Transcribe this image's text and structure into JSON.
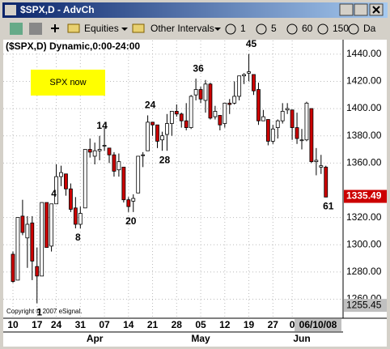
{
  "window": {
    "title": "$SPX,D - AdvCh"
  },
  "toolbar": {
    "groups": [
      "Equities",
      "Other Intervals"
    ],
    "intervals": [
      "1",
      "5",
      "60",
      "150",
      "Da"
    ]
  },
  "chart_data": {
    "type": "candlestick",
    "title": "($SPX,D) Dynamic,0:00-24:00",
    "note": "SPX now",
    "copyright": "Copyright © 2007 eSignal.",
    "categories": [
      "10",
      null,
      null,
      null,
      null,
      "17",
      null,
      null,
      null,
      "24",
      null,
      null,
      null,
      null,
      "31",
      null,
      null,
      null,
      null,
      "07",
      null,
      null,
      null,
      null,
      "14",
      null,
      null,
      null,
      null,
      "21",
      null,
      null,
      null,
      null,
      "28",
      null,
      null,
      null,
      null,
      "05",
      null,
      null,
      null,
      null,
      "12",
      null,
      null,
      null,
      null,
      "19",
      null,
      null,
      null,
      null,
      "27",
      null,
      null,
      null,
      "0",
      null,
      null,
      null,
      null,
      null,
      null,
      null
    ],
    "months": [
      {
        "category": 17,
        "label": "Apr"
      },
      {
        "category": 39,
        "label": "May"
      },
      {
        "category": 60,
        "label": "Jun"
      }
    ],
    "cursor_date": "06/10/08",
    "open": [
      1293,
      1274,
      1321,
      1305,
      1316,
      1284,
      1277,
      1331,
      1299,
      1330,
      1350,
      1352,
      1341,
      1327,
      1315,
      1327,
      1370,
      1365,
      1369,
      1373,
      1371,
      1366,
      1355,
      1357,
      1333,
      1332,
      1338,
      1366,
      1369,
      1390,
      1388,
      1377,
      1381,
      1389,
      1398,
      1396,
      1391,
      1386,
      1410,
      1414,
      1406,
      1418,
      1394,
      1395,
      1389,
      1404,
      1404,
      1409,
      1424,
      1426,
      1425,
      1414,
      1391,
      1392,
      1376,
      1386,
      1391,
      1399,
      1399,
      1386,
      1377,
      1377,
      1400,
      1361,
      1357,
      1357
    ],
    "high": [
      1295,
      1320,
      1333,
      1321,
      1321,
      1298,
      1331,
      1331,
      1330,
      1359,
      1358,
      1352,
      1345,
      1335,
      1328,
      1370,
      1378,
      1375,
      1380,
      1386,
      1371,
      1368,
      1367,
      1357,
      1335,
      1337,
      1365,
      1368,
      1395,
      1390,
      1388,
      1383,
      1396,
      1398,
      1403,
      1397,
      1404,
      1410,
      1422,
      1416,
      1421,
      1419,
      1402,
      1395,
      1404,
      1407,
      1420,
      1424,
      1426,
      1440,
      1425,
      1419,
      1399,
      1392,
      1388,
      1392,
      1404,
      1404,
      1399,
      1397,
      1385,
      1405,
      1400,
      1371,
      1366,
      1358
    ],
    "low": [
      1272,
      1274,
      1307,
      1283,
      1274,
      1257,
      1277,
      1298,
      1295,
      1330,
      1343,
      1336,
      1324,
      1312,
      1312,
      1327,
      1364,
      1359,
      1362,
      1369,
      1360,
      1350,
      1350,
      1331,
      1324,
      1324,
      1338,
      1357,
      1369,
      1380,
      1371,
      1369,
      1369,
      1380,
      1394,
      1386,
      1384,
      1385,
      1406,
      1404,
      1397,
      1392,
      1392,
      1384,
      1386,
      1396,
      1403,
      1406,
      1418,
      1420,
      1410,
      1388,
      1391,
      1373,
      1374,
      1378,
      1389,
      1396,
      1377,
      1374,
      1370,
      1376,
      1360,
      1351,
      1352,
      1335
    ],
    "close": [
      1273,
      1320,
      1309,
      1315,
      1288,
      1277,
      1331,
      1298,
      1330,
      1350,
      1353,
      1341,
      1326,
      1315,
      1323,
      1370,
      1368,
      1369,
      1370,
      1373,
      1366,
      1354,
      1361,
      1333,
      1328,
      1334,
      1365,
      1366,
      1390,
      1388,
      1376,
      1380,
      1389,
      1398,
      1396,
      1391,
      1386,
      1409,
      1414,
      1407,
      1418,
      1393,
      1398,
      1388,
      1404,
      1403,
      1409,
      1424,
      1425,
      1427,
      1413,
      1391,
      1394,
      1376,
      1385,
      1391,
      1398,
      1400,
      1386,
      1378,
      1377,
      1404,
      1361,
      1362,
      1358,
      1335
    ],
    "up_color": "#ffffff",
    "down_color": "#cc0000",
    "annotations": [
      {
        "category": 5,
        "text": "1",
        "place": "below"
      },
      {
        "category": 8,
        "text": "4",
        "place": "above"
      },
      {
        "category": 13,
        "text": "8",
        "place": "below"
      },
      {
        "category": 18,
        "text": "14",
        "place": "above"
      },
      {
        "category": 24,
        "text": "20",
        "place": "below"
      },
      {
        "category": 28,
        "text": "24",
        "place": "above"
      },
      {
        "category": 31,
        "text": "28",
        "place": "below"
      },
      {
        "category": 38,
        "text": "36",
        "place": "above"
      },
      {
        "category": 49,
        "text": "45",
        "place": "above"
      },
      {
        "category": 65,
        "text": "61",
        "place": "below"
      }
    ],
    "ylim": [
      1246,
      1450
    ],
    "yticks": [
      {
        "value": 1260,
        "label": "1260.00"
      },
      {
        "value": 1280,
        "label": "1280.00"
      },
      {
        "value": 1300,
        "label": "1300.00"
      },
      {
        "value": 1320,
        "label": "1320.00"
      },
      {
        "value": 1360,
        "label": "1360.00"
      },
      {
        "value": 1380,
        "label": "1380.00"
      },
      {
        "value": 1400,
        "label": "1400.00"
      },
      {
        "value": 1420,
        "label": "1420.00"
      },
      {
        "value": 1440,
        "label": "1440.00"
      }
    ],
    "last_price": 1335.49,
    "low_marker": 1255.45,
    "grid": true
  }
}
